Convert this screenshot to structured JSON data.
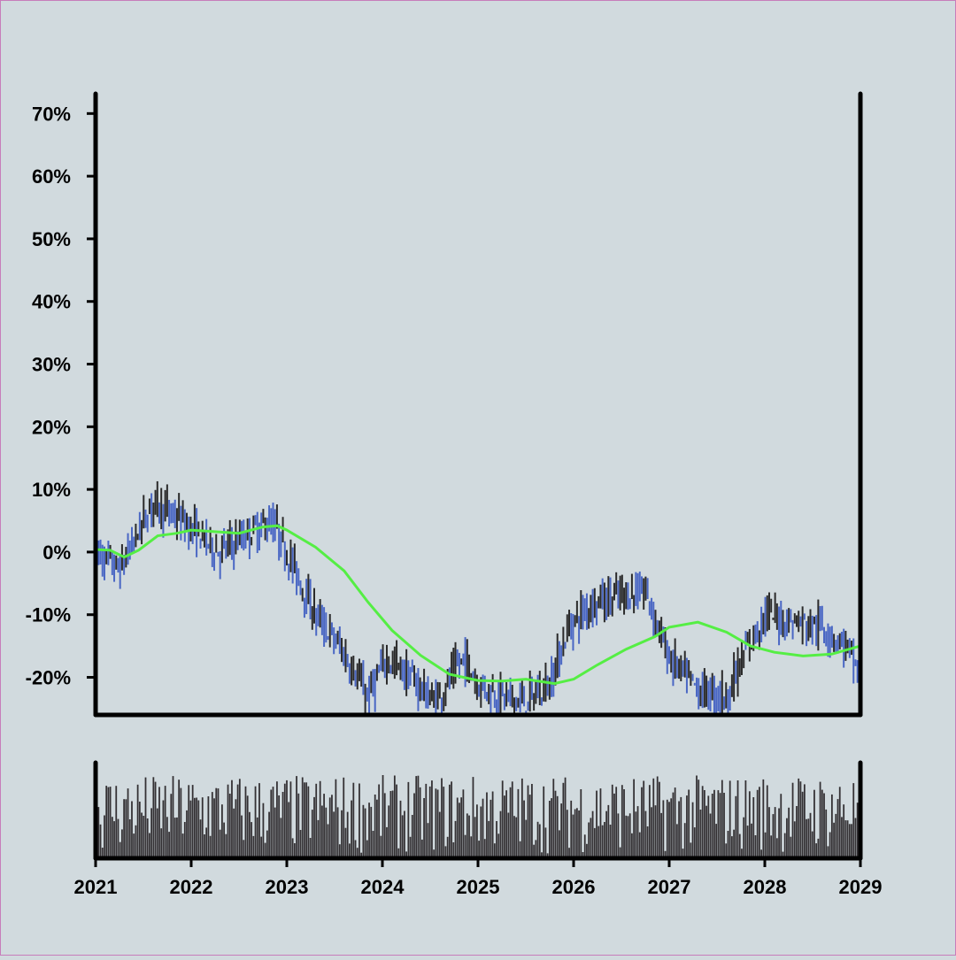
{
  "chart_data": {
    "type": "ohlc",
    "title": "",
    "xlabel": "",
    "ylabel": "",
    "x_range": [
      2021.0,
      2029.0
    ],
    "y_range": [
      -26,
      74
    ],
    "y_ticks": [
      -20,
      -10,
      0,
      10,
      20,
      30,
      40,
      50,
      60,
      70
    ],
    "y_tick_labels": [
      "-20%",
      "-10%",
      "0%",
      "10%",
      "20%",
      "30%",
      "40%",
      "50%",
      "60%",
      "70%"
    ],
    "x_ticks": [
      2021,
      2022,
      2023,
      2024,
      2025,
      2026,
      2027,
      2028,
      2029
    ],
    "x_tick_labels": [
      "2021",
      "2022",
      "2023",
      "2024",
      "2025",
      "2026",
      "2027",
      "2028",
      "2029"
    ],
    "grid": false,
    "legend": "none",
    "colors": {
      "background": "#d1dade",
      "up_bar": "#2a2a2a",
      "down_bar": "#4a67c4",
      "moving_average": "#55ee44",
      "volume": "#333033",
      "axis": "#000000"
    },
    "price_anchors": {
      "t": [
        2021.0,
        2021.25,
        2021.6,
        2021.9,
        2022.3,
        2022.6,
        2022.85,
        2023.0,
        2023.3,
        2023.55,
        2023.85,
        2024.05,
        2024.3,
        2024.55,
        2024.85,
        2025.0,
        2025.25,
        2025.5,
        2025.75,
        2025.95,
        2026.2,
        2026.5,
        2026.75,
        2027.0,
        2027.3,
        2027.6,
        2027.8,
        2028.0,
        2028.3,
        2028.6,
        2028.85,
        2029.0
      ],
      "v": [
        0,
        -3,
        8,
        5,
        0,
        3,
        5,
        0,
        -10,
        -15,
        -23,
        -17,
        -20,
        -24,
        -17,
        -21,
        -23,
        -24,
        -21,
        -12,
        -8,
        -7,
        -6,
        -17,
        -22,
        -23,
        -16,
        -10,
        -11,
        -12,
        -15,
        -20
      ]
    },
    "moving_average": {
      "t": [
        2021.0,
        2021.15,
        2021.3,
        2021.45,
        2021.65,
        2021.85,
        2022.0,
        2022.3,
        2022.5,
        2022.75,
        2022.9,
        2023.0,
        2023.3,
        2023.6,
        2023.85,
        2024.1,
        2024.4,
        2024.7,
        2025.0,
        2025.25,
        2025.5,
        2025.8,
        2026.0,
        2026.25,
        2026.55,
        2026.85,
        2027.0,
        2027.3,
        2027.6,
        2027.85,
        2028.1,
        2028.4,
        2028.7,
        2029.0
      ],
      "v": [
        0.4,
        0.3,
        -0.8,
        0.3,
        2.6,
        3.0,
        3.5,
        3.2,
        3.0,
        4.0,
        4.2,
        3.5,
        0.8,
        -3.0,
        -8.0,
        -12.5,
        -16.5,
        -19.5,
        -20.5,
        -20.6,
        -20.3,
        -21.0,
        -20.3,
        -18.0,
        -15.5,
        -13.5,
        -12.0,
        -11.2,
        -12.8,
        -15.0,
        -16.0,
        -16.6,
        -16.3,
        -15.0
      ]
    },
    "volume": {
      "y_range": [
        0,
        1
      ],
      "min": 0.05,
      "max": 1.0
    },
    "bar_count": 390,
    "seed": 7
  }
}
